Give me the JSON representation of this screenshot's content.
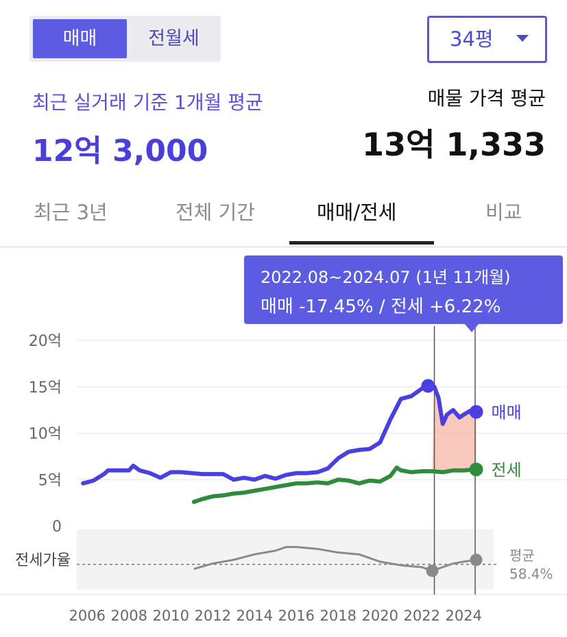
{
  "trade_type_toggle": {
    "active": "매매",
    "inactive": "전월세"
  },
  "size_select": {
    "value": "34평"
  },
  "summary": {
    "recent_label": "최근 실거래 기준 1개월 평균",
    "recent_value": "12억 3,000",
    "listing_label": "매물 가격 평균",
    "listing_value": "13억 1,333"
  },
  "tabs": [
    "최근 3년",
    "전체 기간",
    "매매/전세",
    "비교"
  ],
  "active_tab": "매매/전세",
  "tooltip": {
    "range": "2022.08~2024.07 (1년 11개월)",
    "changes": "매매 -17.45%  /  전세 +6.22%"
  },
  "colors": {
    "sale": "#4a3fe0",
    "jeonse": "#2f8b3d",
    "ratio": "#8a8a8a",
    "highlight": "#f6b7a6",
    "accent": "#5b5ce2"
  },
  "chart_data": {
    "type": "line",
    "x_ticks": [
      "2006",
      "2008",
      "2010",
      "2012",
      "2014",
      "2016",
      "2018",
      "2020",
      "2022",
      "2024"
    ],
    "y_ticks": [
      "20억",
      "15억",
      "10억",
      "5억",
      "0"
    ],
    "ylim": [
      0,
      20
    ],
    "xlim": [
      2005.5,
      2025.5
    ],
    "series": [
      {
        "name": "매매",
        "color": "#4a3fe0",
        "points": [
          [
            2005.8,
            4.6
          ],
          [
            2006.3,
            4.9
          ],
          [
            2006.8,
            5.6
          ],
          [
            2007.0,
            6.0
          ],
          [
            2007.5,
            6.0
          ],
          [
            2008.0,
            6.0
          ],
          [
            2008.2,
            6.5
          ],
          [
            2008.5,
            6.0
          ],
          [
            2009.0,
            5.7
          ],
          [
            2009.5,
            5.2
          ],
          [
            2010.0,
            5.8
          ],
          [
            2010.5,
            5.8
          ],
          [
            2011.0,
            5.7
          ],
          [
            2011.5,
            5.6
          ],
          [
            2012.0,
            5.6
          ],
          [
            2012.5,
            5.6
          ],
          [
            2013.0,
            5.0
          ],
          [
            2013.5,
            5.2
          ],
          [
            2014.0,
            5.0
          ],
          [
            2014.5,
            5.4
          ],
          [
            2015.0,
            5.1
          ],
          [
            2015.5,
            5.5
          ],
          [
            2016.0,
            5.7
          ],
          [
            2016.5,
            5.7
          ],
          [
            2017.0,
            5.8
          ],
          [
            2017.5,
            6.2
          ],
          [
            2018.0,
            7.3
          ],
          [
            2018.5,
            8.0
          ],
          [
            2019.0,
            8.2
          ],
          [
            2019.5,
            8.3
          ],
          [
            2020.0,
            9.0
          ],
          [
            2020.5,
            11.5
          ],
          [
            2021.0,
            13.7
          ],
          [
            2021.5,
            14.0
          ],
          [
            2022.0,
            14.8
          ],
          [
            2022.3,
            15.1
          ],
          [
            2022.6,
            15.0
          ],
          [
            2022.8,
            13.8
          ],
          [
            2023.0,
            11.0
          ],
          [
            2023.2,
            12.0
          ],
          [
            2023.5,
            12.5
          ],
          [
            2023.8,
            11.7
          ],
          [
            2024.0,
            12.0
          ],
          [
            2024.3,
            12.4
          ],
          [
            2024.6,
            12.3
          ]
        ]
      },
      {
        "name": "전세",
        "color": "#2f8b3d",
        "points": [
          [
            2011.1,
            2.6
          ],
          [
            2011.5,
            2.9
          ],
          [
            2012.0,
            3.2
          ],
          [
            2012.5,
            3.3
          ],
          [
            2013.0,
            3.5
          ],
          [
            2013.5,
            3.6
          ],
          [
            2014.0,
            3.8
          ],
          [
            2014.5,
            4.0
          ],
          [
            2015.0,
            4.2
          ],
          [
            2015.5,
            4.4
          ],
          [
            2016.0,
            4.6
          ],
          [
            2016.5,
            4.6
          ],
          [
            2017.0,
            4.7
          ],
          [
            2017.5,
            4.6
          ],
          [
            2018.0,
            5.0
          ],
          [
            2018.5,
            4.9
          ],
          [
            2019.0,
            4.6
          ],
          [
            2019.5,
            4.9
          ],
          [
            2020.0,
            4.8
          ],
          [
            2020.5,
            5.4
          ],
          [
            2020.8,
            6.3
          ],
          [
            2021.0,
            6.0
          ],
          [
            2021.5,
            5.8
          ],
          [
            2022.0,
            5.9
          ],
          [
            2022.5,
            5.9
          ],
          [
            2023.0,
            5.8
          ],
          [
            2023.5,
            6.0
          ],
          [
            2024.0,
            6.0
          ],
          [
            2024.6,
            6.1
          ]
        ]
      }
    ],
    "ratio_series": {
      "name": "전세가율",
      "avg_label": "평균",
      "avg_value": "58.4%",
      "points": [
        [
          2011.1,
          51
        ],
        [
          2012.0,
          54
        ],
        [
          2013.0,
          56
        ],
        [
          2014.0,
          59
        ],
        [
          2015.0,
          61
        ],
        [
          2015.5,
          63
        ],
        [
          2016.0,
          63
        ],
        [
          2017.0,
          62
        ],
        [
          2018.0,
          60
        ],
        [
          2019.0,
          59
        ],
        [
          2019.5,
          57
        ],
        [
          2020.0,
          55
        ],
        [
          2021.0,
          53
        ],
        [
          2022.0,
          52
        ],
        [
          2022.5,
          50
        ],
        [
          2023.0,
          52
        ],
        [
          2023.5,
          54
        ],
        [
          2024.0,
          55
        ],
        [
          2024.6,
          56
        ]
      ],
      "ylim": [
        40,
        70
      ]
    },
    "highlight_range": [
      "2022.08",
      "2024.07"
    ]
  }
}
